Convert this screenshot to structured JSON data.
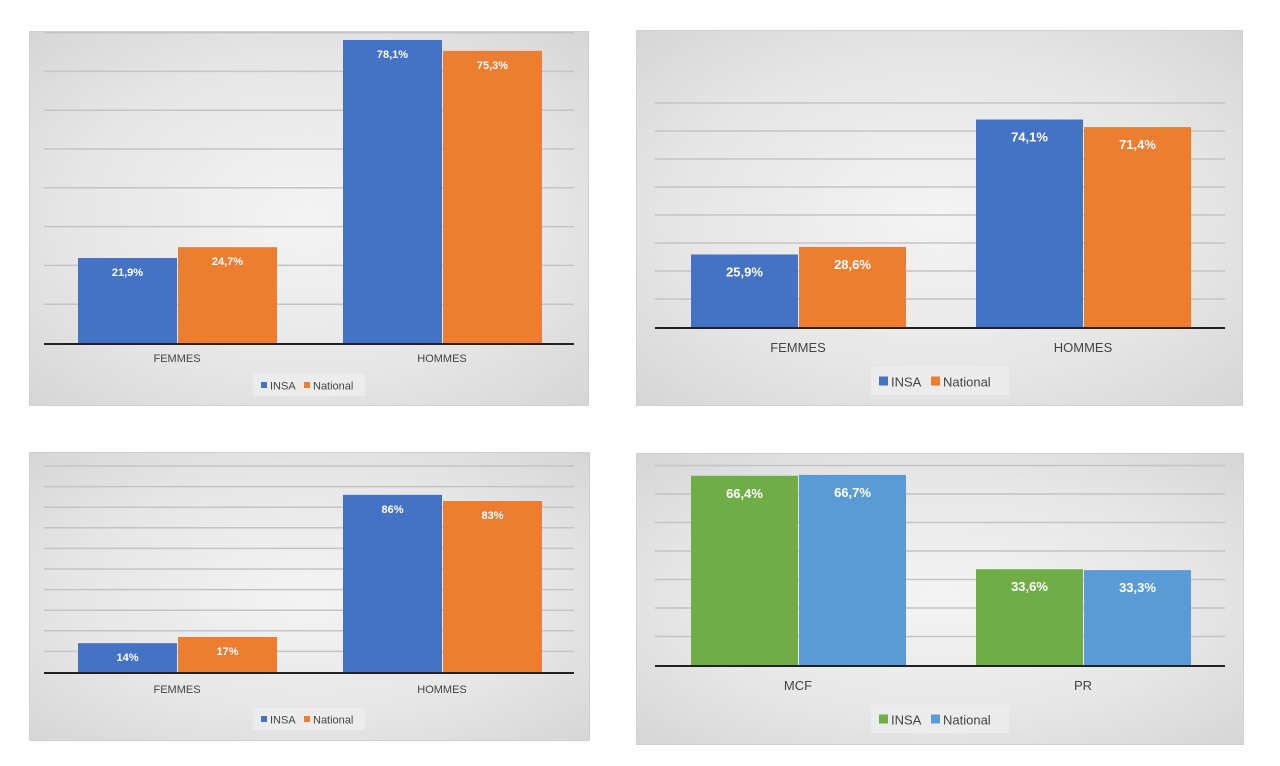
{
  "chart_data": [
    {
      "type": "bar",
      "categories": [
        "FEMMES",
        "HOMMES"
      ],
      "series": [
        {
          "name": "INSA",
          "values": [
            21.9,
            78.1
          ],
          "labels": [
            "21,9%",
            "78,1%"
          ],
          "color": "#4472c4"
        },
        {
          "name": "National",
          "values": [
            24.7,
            75.3
          ],
          "labels": [
            "24,7%",
            "75,3%"
          ],
          "color": "#ed7d31"
        }
      ],
      "ylim": [
        0,
        80
      ],
      "grid": true,
      "legend": "bottom"
    },
    {
      "type": "bar",
      "categories": [
        "FEMMES",
        "HOMMES"
      ],
      "series": [
        {
          "name": "INSA",
          "values": [
            25.9,
            74.1
          ],
          "labels": [
            "25,9%",
            "74,1%"
          ],
          "color": "#4472c4"
        },
        {
          "name": "National",
          "values": [
            28.6,
            71.4
          ],
          "labels": [
            "28,6%",
            "71,4%"
          ],
          "color": "#ed7d31"
        }
      ],
      "ylim": [
        0,
        80
      ],
      "grid": true,
      "legend": "bottom"
    },
    {
      "type": "bar",
      "categories": [
        "FEMMES",
        "HOMMES"
      ],
      "series": [
        {
          "name": "INSA",
          "values": [
            14,
            86
          ],
          "labels": [
            "14%",
            "86%"
          ],
          "color": "#4472c4"
        },
        {
          "name": "National",
          "values": [
            17,
            83
          ],
          "labels": [
            "17%",
            "83%"
          ],
          "color": "#ed7d31"
        }
      ],
      "ylim": [
        0,
        100
      ],
      "grid": true,
      "legend": "bottom"
    },
    {
      "type": "bar",
      "categories": [
        "MCF",
        "PR"
      ],
      "series": [
        {
          "name": "INSA",
          "values": [
            66.4,
            33.6
          ],
          "labels": [
            "66,4%",
            "33,6%"
          ],
          "color": "#70ad47"
        },
        {
          "name": "National",
          "values": [
            66.7,
            33.3
          ],
          "labels": [
            "66,7%",
            "33,3%"
          ],
          "color": "#5b9bd5"
        }
      ],
      "ylim": [
        0,
        70
      ],
      "grid": true,
      "legend": "bottom"
    }
  ]
}
